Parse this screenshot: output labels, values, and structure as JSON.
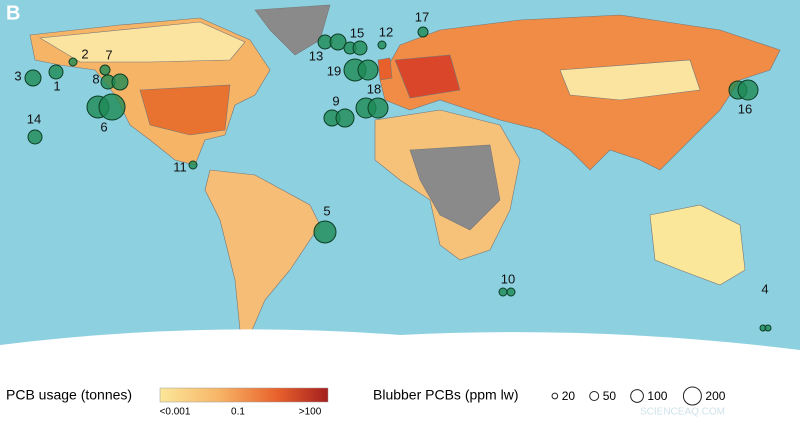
{
  "panel_label": "B",
  "sites": [
    "1",
    "2",
    "3",
    "4",
    "5",
    "6",
    "7",
    "8",
    "9",
    "10",
    "11",
    "12",
    "13",
    "14",
    "15",
    "16",
    "17",
    "18",
    "19"
  ],
  "legend": {
    "usage_title": "PCB usage (tonnes)",
    "usage_labels": [
      "<0.001",
      "0.1",
      ">100"
    ],
    "blubber_title": "Blubber PCBs (ppm lw)",
    "blubber_sizes": [
      20,
      50,
      100,
      200
    ]
  },
  "watermark": "SCIENCEAQ.COM"
}
